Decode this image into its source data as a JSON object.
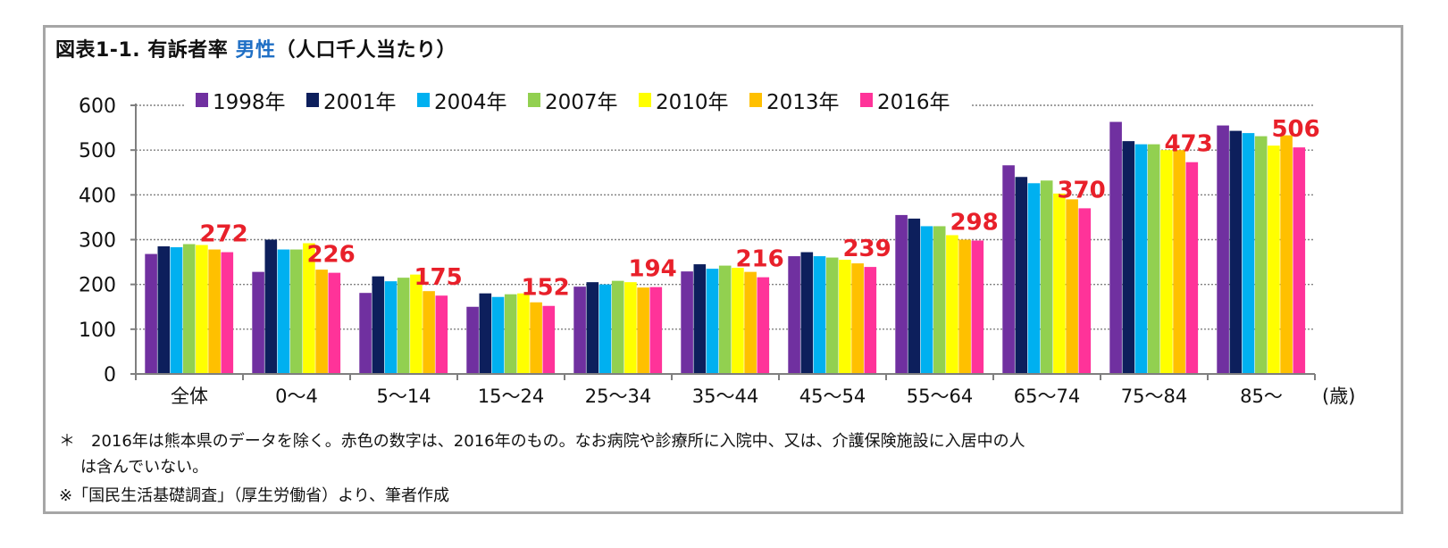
{
  "title": {
    "main": "図表1-1. 有訴者率",
    "highlight": "男性",
    "suffix": "（人口千人当たり）"
  },
  "colors": {
    "title_highlight": "#1f6fc5",
    "label_red": "#e8202a",
    "grid": "#808080",
    "axis": "#7f7f7f"
  },
  "chart_data": {
    "type": "bar",
    "ylim": [
      0,
      600
    ],
    "yticks": [
      0,
      100,
      200,
      300,
      400,
      500,
      600
    ],
    "grid": true,
    "legend_position": "top",
    "x_unit": "(歳)",
    "categories": [
      "全体",
      "0～4",
      "5～14",
      "15～24",
      "25～34",
      "35～44",
      "45～54",
      "55～64",
      "65～74",
      "75～84",
      "85～"
    ],
    "series": [
      {
        "name": "1998年",
        "color": "#7030a0",
        "values": [
          268,
          228,
          181,
          150,
          195,
          229,
          263,
          355,
          466,
          563,
          555
        ]
      },
      {
        "name": "2001年",
        "color": "#0d1f5c",
        "values": [
          285,
          300,
          218,
          180,
          205,
          245,
          272,
          347,
          440,
          520,
          543
        ]
      },
      {
        "name": "2004年",
        "color": "#00b0f0",
        "values": [
          283,
          278,
          207,
          172,
          200,
          235,
          263,
          330,
          426,
          513,
          538
        ]
      },
      {
        "name": "2007年",
        "color": "#92d050",
        "values": [
          290,
          278,
          215,
          178,
          208,
          242,
          260,
          330,
          432,
          513,
          531
        ]
      },
      {
        "name": "2010年",
        "color": "#ffff00",
        "values": [
          288,
          292,
          222,
          180,
          205,
          237,
          255,
          310,
          403,
          500,
          510
        ]
      },
      {
        "name": "2013年",
        "color": "#ffc000",
        "values": [
          278,
          233,
          185,
          160,
          193,
          228,
          247,
          300,
          390,
          500,
          533
        ]
      },
      {
        "name": "2016年",
        "color": "#ff3399",
        "values": [
          272,
          226,
          175,
          152,
          194,
          216,
          239,
          298,
          370,
          473,
          506
        ]
      }
    ],
    "data_labels": [
      272,
      226,
      175,
      152,
      194,
      216,
      239,
      298,
      370,
      473,
      506
    ]
  },
  "notes": {
    "line1": "＊　2016年は熊本県のデータを除く。赤色の数字は、2016年のもの。なお病院や診療所に入院中、又は、介護保険施設に入居中の人",
    "line1b": "は含んでいない。",
    "line2": "※「国民生活基礎調査」（厚生労働省）より、筆者作成"
  }
}
